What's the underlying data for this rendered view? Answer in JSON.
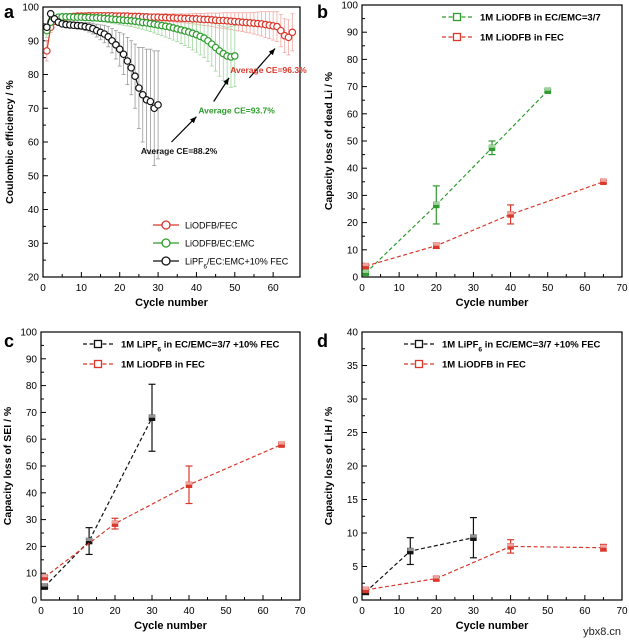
{
  "watermark": "ybx8.cn",
  "colors": {
    "red": "#d9382b",
    "green": "#2e9b2e",
    "black": "#111111",
    "gray": "#9a9a9a",
    "lightRed": "#f0a9a3",
    "lightGreen": "#9fd69f"
  },
  "chart_data": [
    {
      "id": "a",
      "panel_label": "a",
      "type": "line",
      "title": "",
      "xlabel": "Cycle number",
      "ylabel": "Coulombic efficiency / %",
      "xlim": [
        0,
        67
      ],
      "ylim": [
        20,
        100
      ],
      "xticks": [
        0,
        10,
        20,
        30,
        40,
        50,
        60
      ],
      "yticks": [
        20,
        30,
        40,
        50,
        60,
        70,
        80,
        90,
        100
      ],
      "legend": {
        "position": "bottom-right"
      },
      "annotations": [
        {
          "text": "Average CE=96.3%",
          "color": "red",
          "x": 48.8,
          "y": 80.5,
          "arrowFrom": [
            53.8,
            79
          ],
          "arrowTo": [
            60.5,
            87.7
          ]
        },
        {
          "text": "Average CE=93.7%",
          "color": "green",
          "x": 40.5,
          "y": 68.5,
          "arrowFrom": [
            44.5,
            72
          ],
          "arrowTo": [
            48.5,
            79
          ]
        },
        {
          "text": "Average CE=88.2%",
          "color": "black",
          "x": 25.5,
          "y": 56.5,
          "arrowFrom": [
            33.5,
            60
          ],
          "arrowTo": [
            40,
            67.5
          ]
        }
      ],
      "series": [
        {
          "name": "LiODFB/FEC",
          "style": "line-open-circle",
          "color": "red",
          "errColor": "lightRed",
          "x": [
            1,
            2,
            3,
            4,
            5,
            6,
            7,
            8,
            9,
            10,
            11,
            12,
            13,
            14,
            15,
            16,
            17,
            18,
            19,
            20,
            21,
            22,
            23,
            24,
            25,
            26,
            27,
            28,
            29,
            30,
            31,
            32,
            33,
            34,
            35,
            36,
            37,
            38,
            39,
            40,
            41,
            42,
            43,
            44,
            45,
            46,
            47,
            48,
            49,
            50,
            51,
            52,
            53,
            54,
            55,
            56,
            57,
            58,
            59,
            60,
            61,
            62,
            63,
            64,
            65
          ],
          "y": [
            87,
            94,
            95.8,
            96.5,
            96.8,
            97,
            97.1,
            97.2,
            97.3,
            97.3,
            97.3,
            97.4,
            97.4,
            97.4,
            97.4,
            97.4,
            97.4,
            97.4,
            97.3,
            97.3,
            97.3,
            97.3,
            97.2,
            97.2,
            97.2,
            97.1,
            97.1,
            97,
            97,
            97,
            96.9,
            96.9,
            96.8,
            96.8,
            96.7,
            96.7,
            96.6,
            96.6,
            96.5,
            96.5,
            96.4,
            96.3,
            96.3,
            96.2,
            96.1,
            96,
            96,
            95.9,
            95.8,
            95.7,
            95.6,
            95.5,
            95.4,
            95.3,
            95.2,
            95.1,
            95,
            94.8,
            94.6,
            94.4,
            94.2,
            93,
            91.5,
            91,
            92.5
          ],
          "err": [
            3,
            1.5,
            1,
            0.8,
            0.6,
            0.5,
            0.5,
            0.5,
            0.5,
            0.5,
            0.5,
            0.5,
            0.5,
            0.5,
            0.5,
            0.6,
            0.6,
            0.6,
            0.6,
            0.7,
            0.7,
            0.7,
            0.7,
            0.8,
            0.8,
            0.8,
            0.9,
            0.9,
            0.9,
            1,
            1,
            1.1,
            1.1,
            1.2,
            1.2,
            1.3,
            1.3,
            1.4,
            1.5,
            1.6,
            1.7,
            1.8,
            1.9,
            2,
            2.1,
            2.2,
            2.3,
            2.4,
            2.5,
            2.6,
            2.7,
            2.8,
            2.9,
            3,
            3.2,
            3.4,
            3.6,
            3.8,
            4,
            4.2,
            4.4,
            4.8,
            5,
            5.2,
            5.5
          ]
        },
        {
          "name": "LiODFB/EC:EMC",
          "style": "line-open-circle",
          "color": "green",
          "errColor": "lightGreen",
          "x": [
            1,
            2,
            3,
            4,
            5,
            6,
            7,
            8,
            9,
            10,
            11,
            12,
            13,
            14,
            15,
            16,
            17,
            18,
            19,
            20,
            21,
            22,
            23,
            24,
            25,
            26,
            27,
            28,
            29,
            30,
            31,
            32,
            33,
            34,
            35,
            36,
            37,
            38,
            39,
            40,
            41,
            42,
            43,
            44,
            45,
            46,
            47,
            48,
            49,
            50
          ],
          "y": [
            93,
            95.5,
            96.5,
            97,
            97.1,
            97.1,
            97.1,
            97,
            97,
            97,
            96.9,
            96.9,
            96.8,
            96.8,
            96.7,
            96.6,
            96.5,
            96.4,
            96.3,
            96.2,
            96.1,
            96,
            95.9,
            95.8,
            95.6,
            95.4,
            95.3,
            95.1,
            94.9,
            94.7,
            94.5,
            94.3,
            94.1,
            93.8,
            93.5,
            93.2,
            92.9,
            92.6,
            92.2,
            91.8,
            91.3,
            90.8,
            90,
            89,
            88,
            87,
            86.2,
            85.5,
            85.2,
            85.5
          ],
          "err": [
            2,
            1,
            0.8,
            0.6,
            0.6,
            0.6,
            0.6,
            0.6,
            0.7,
            0.7,
            0.8,
            0.8,
            0.9,
            0.9,
            1,
            1,
            1.1,
            1.2,
            1.3,
            1.4,
            1.5,
            1.6,
            1.7,
            1.8,
            1.9,
            2,
            2.2,
            2.4,
            2.6,
            2.8,
            3,
            3.2,
            3.4,
            3.6,
            3.8,
            4,
            4.3,
            4.6,
            4.9,
            5.2,
            5.5,
            5.8,
            6.1,
            6.5,
            7,
            7.5,
            8,
            8.5,
            9,
            9
          ]
        },
        {
          "name": "LiPF6/EC:EMC+10% FEC",
          "style": "line-open-circle",
          "color": "black",
          "errColor": "gray",
          "x": [
            1,
            2,
            3,
            4,
            5,
            6,
            7,
            8,
            9,
            10,
            11,
            12,
            13,
            14,
            15,
            16,
            17,
            18,
            19,
            20,
            21,
            22,
            23,
            24,
            25,
            26,
            27,
            28,
            29,
            30
          ],
          "y": [
            94,
            98,
            96.5,
            95.5,
            95,
            94.8,
            94.7,
            94.6,
            94.5,
            94.4,
            94.2,
            94,
            93.6,
            93,
            92.5,
            92,
            91.2,
            90,
            88.8,
            87.5,
            86,
            84,
            82,
            79.5,
            76,
            74,
            72.5,
            72,
            70,
            71
          ],
          "err": [
            1,
            1,
            1,
            0.8,
            0.8,
            0.8,
            0.9,
            0.9,
            1,
            1,
            1.2,
            1.4,
            1.6,
            1.9,
            2.2,
            2.6,
            3,
            3.6,
            4.2,
            5,
            6,
            7,
            8,
            9.5,
            12,
            14,
            15,
            15.5,
            17,
            16
          ]
        }
      ]
    },
    {
      "id": "b",
      "panel_label": "b",
      "type": "scatter",
      "title": "",
      "xlabel": "Cycle number",
      "ylabel": "Capacity loss of dead Li / %",
      "xlim": [
        0,
        70
      ],
      "ylim": [
        0,
        100
      ],
      "xticks": [
        0,
        10,
        20,
        30,
        40,
        50,
        60,
        70
      ],
      "yticks": [
        0,
        10,
        20,
        30,
        40,
        50,
        60,
        70,
        80,
        90,
        100
      ],
      "legend": {
        "position": "top-left"
      },
      "series": [
        {
          "name": "1M LiODFB in EC/EMC=3/7",
          "color": "green",
          "style": "dash-square",
          "x": [
            1,
            20,
            35,
            50
          ],
          "y": [
            1.5,
            26.5,
            47.5,
            68.5
          ],
          "err": [
            0.5,
            7,
            2.5,
            0.5
          ]
        },
        {
          "name": "1M LiODFB in FEC",
          "color": "red",
          "style": "dash-square",
          "x": [
            1,
            20,
            40,
            65
          ],
          "y": [
            4,
            11.5,
            23,
            35
          ],
          "err": [
            0.5,
            1,
            3.5,
            0.5
          ]
        }
      ]
    },
    {
      "id": "c",
      "panel_label": "c",
      "type": "scatter",
      "title": "",
      "xlabel": "Cycle number",
      "ylabel": "Capacity loss of SEI / %",
      "xlim": [
        0,
        70
      ],
      "ylim": [
        0,
        100
      ],
      "xticks": [
        0,
        10,
        20,
        30,
        40,
        50,
        60,
        70
      ],
      "yticks": [
        0,
        10,
        20,
        30,
        40,
        50,
        60,
        70,
        80,
        90,
        100
      ],
      "legend": {
        "position": "top-left"
      },
      "series": [
        {
          "name": "1M LiPF6 in EC/EMC=3/7 +10% FEC",
          "color": "black",
          "style": "dash-square",
          "x": [
            1,
            13,
            30
          ],
          "y": [
            5,
            22,
            68
          ],
          "err": [
            0.5,
            5,
            12.5
          ]
        },
        {
          "name": "1M LiODFB in FEC",
          "color": "red",
          "style": "dash-square",
          "x": [
            1,
            20,
            40,
            65
          ],
          "y": [
            8.5,
            28.5,
            43,
            58
          ],
          "err": [
            0.5,
            2,
            7,
            0.5
          ]
        }
      ]
    },
    {
      "id": "d",
      "panel_label": "d",
      "type": "scatter",
      "title": "",
      "xlabel": "Cycle number",
      "ylabel": "Capacity loss of LiH / %",
      "xlim": [
        0,
        70
      ],
      "ylim": [
        0,
        40
      ],
      "xticks": [
        0,
        10,
        20,
        30,
        40,
        50,
        60,
        70
      ],
      "yticks": [
        0,
        5,
        10,
        15,
        20,
        25,
        30,
        35,
        40
      ],
      "legend": {
        "position": "top-left"
      },
      "series": [
        {
          "name": "1M LiPF6 in EC/EMC=3/7 +10% FEC",
          "color": "black",
          "style": "dash-square",
          "x": [
            1,
            13,
            30
          ],
          "y": [
            1.2,
            7.3,
            9.3
          ],
          "err": [
            0.3,
            2,
            3
          ]
        },
        {
          "name": "1M LiODFB in FEC",
          "color": "red",
          "style": "dash-square",
          "x": [
            1,
            20,
            40,
            65
          ],
          "y": [
            1.5,
            3.2,
            8,
            7.8
          ],
          "err": [
            0.3,
            0.3,
            1,
            0.5
          ]
        }
      ]
    }
  ]
}
